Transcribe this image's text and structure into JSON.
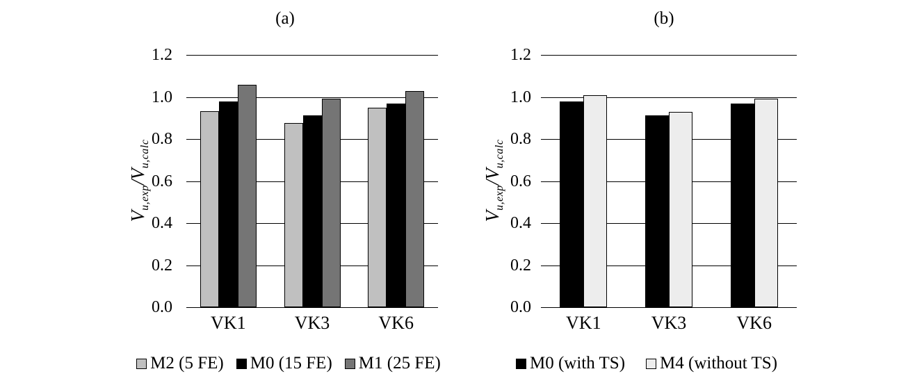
{
  "figure": {
    "panel_a_label": "(a)",
    "panel_b_label": "(b)"
  },
  "y_axis_label": {
    "v1": "V",
    "s1": "u,exp",
    "v2": "/V",
    "s2": "u,calc"
  },
  "chart_data": [
    {
      "type": "bar",
      "title": "(a)",
      "categories": [
        "VK1",
        "VK3",
        "VK6"
      ],
      "series": [
        {
          "name": "M2 (5 FE)",
          "color": "#c0c0c0",
          "values": [
            0.93,
            0.875,
            0.945
          ]
        },
        {
          "name": "M0 (15 FE)",
          "color": "#000000",
          "values": [
            0.975,
            0.91,
            0.965
          ]
        },
        {
          "name": "M1 (25 FE)",
          "color": "#757575",
          "values": [
            1.055,
            0.99,
            1.025
          ]
        }
      ],
      "xlabel": "",
      "ylabel": "Vu,exp/Vu,calc",
      "ylim": [
        0,
        1.2
      ],
      "ytick_labels": [
        "1.2",
        "1.0",
        "0.8",
        "0.6",
        "0.4",
        "0.2",
        "0.0"
      ],
      "grid": true,
      "legend_position": "bottom"
    },
    {
      "type": "bar",
      "title": "(b)",
      "categories": [
        "VK1",
        "VK3",
        "VK6"
      ],
      "series": [
        {
          "name": "M0 (with TS)",
          "color": "#000000",
          "values": [
            0.975,
            0.91,
            0.965
          ]
        },
        {
          "name": "M4 (without TS)",
          "color": "#ededed",
          "values": [
            1.005,
            0.925,
            0.99
          ]
        }
      ],
      "xlabel": "",
      "ylabel": "Vu,exp/Vu,calc",
      "ylim": [
        0,
        1.2
      ],
      "ytick_labels": [
        "1.2",
        "1.0",
        "0.8",
        "0.6",
        "0.4",
        "0.2",
        "0.0"
      ],
      "grid": true,
      "legend_position": "bottom"
    }
  ]
}
